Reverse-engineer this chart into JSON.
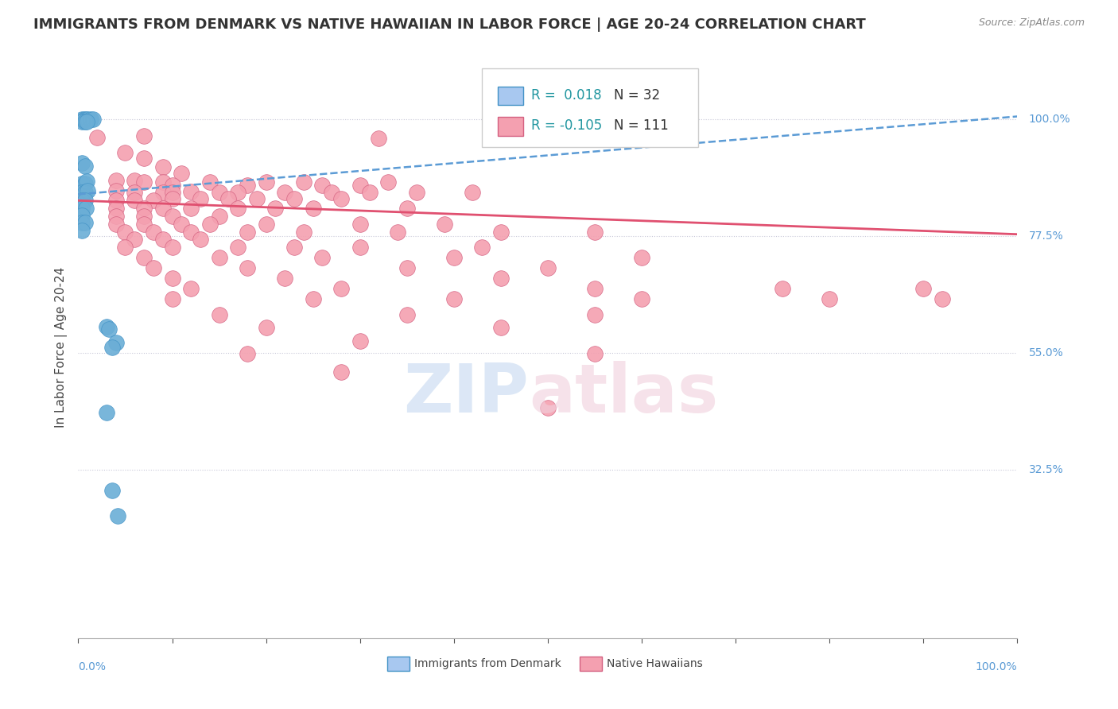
{
  "title": "IMMIGRANTS FROM DENMARK VS NATIVE HAWAIIAN IN LABOR FORCE | AGE 20-24 CORRELATION CHART",
  "source": "Source: ZipAtlas.com",
  "ylabel": "In Labor Force | Age 20-24",
  "xlim": [
    0.0,
    1.0
  ],
  "ylim": [
    0.0,
    1.12
  ],
  "x_tick_labels": [
    "0.0%",
    "100.0%"
  ],
  "y_tick_labels": [
    "32.5%",
    "55.0%",
    "77.5%",
    "100.0%"
  ],
  "y_tick_positions": [
    0.325,
    0.55,
    0.775,
    1.0
  ],
  "legend_denmark_r": "R =  0.018",
  "legend_denmark_n": "N = 32",
  "legend_hawaiian_r": "R = -0.105",
  "legend_hawaiian_n": "N = 111",
  "legend_denmark_color": "#a8c8f0",
  "legend_hawaiian_color": "#f4a0b0",
  "r_value_color": "#2196a0",
  "denmark_points": [
    [
      0.004,
      1.0
    ],
    [
      0.006,
      1.0
    ],
    [
      0.008,
      1.0
    ],
    [
      0.01,
      1.0
    ],
    [
      0.013,
      1.0
    ],
    [
      0.016,
      1.0
    ],
    [
      0.004,
      0.995
    ],
    [
      0.007,
      0.995
    ],
    [
      0.009,
      0.995
    ],
    [
      0.004,
      0.915
    ],
    [
      0.007,
      0.91
    ],
    [
      0.004,
      0.875
    ],
    [
      0.007,
      0.875
    ],
    [
      0.009,
      0.88
    ],
    [
      0.004,
      0.858
    ],
    [
      0.007,
      0.858
    ],
    [
      0.01,
      0.862
    ],
    [
      0.004,
      0.843
    ],
    [
      0.007,
      0.843
    ],
    [
      0.004,
      0.828
    ],
    [
      0.008,
      0.828
    ],
    [
      0.004,
      0.815
    ],
    [
      0.004,
      0.8
    ],
    [
      0.007,
      0.8
    ],
    [
      0.004,
      0.785
    ],
    [
      0.03,
      0.6
    ],
    [
      0.033,
      0.595
    ],
    [
      0.04,
      0.57
    ],
    [
      0.036,
      0.56
    ],
    [
      0.03,
      0.435
    ],
    [
      0.036,
      0.285
    ],
    [
      0.042,
      0.235
    ]
  ],
  "hawaiian_points": [
    [
      0.02,
      0.965
    ],
    [
      0.07,
      0.967
    ],
    [
      0.32,
      0.963
    ],
    [
      0.56,
      0.963
    ],
    [
      0.65,
      0.963
    ],
    [
      0.05,
      0.935
    ],
    [
      0.07,
      0.925
    ],
    [
      0.09,
      0.908
    ],
    [
      0.11,
      0.895
    ],
    [
      0.04,
      0.882
    ],
    [
      0.06,
      0.882
    ],
    [
      0.07,
      0.878
    ],
    [
      0.09,
      0.878
    ],
    [
      0.1,
      0.872
    ],
    [
      0.14,
      0.878
    ],
    [
      0.18,
      0.872
    ],
    [
      0.2,
      0.878
    ],
    [
      0.24,
      0.878
    ],
    [
      0.26,
      0.872
    ],
    [
      0.3,
      0.872
    ],
    [
      0.33,
      0.878
    ],
    [
      0.04,
      0.862
    ],
    [
      0.06,
      0.858
    ],
    [
      0.09,
      0.858
    ],
    [
      0.1,
      0.859
    ],
    [
      0.12,
      0.86
    ],
    [
      0.15,
      0.858
    ],
    [
      0.17,
      0.858
    ],
    [
      0.22,
      0.858
    ],
    [
      0.27,
      0.858
    ],
    [
      0.31,
      0.858
    ],
    [
      0.36,
      0.858
    ],
    [
      0.42,
      0.858
    ],
    [
      0.04,
      0.843
    ],
    [
      0.06,
      0.843
    ],
    [
      0.08,
      0.843
    ],
    [
      0.1,
      0.846
    ],
    [
      0.13,
      0.846
    ],
    [
      0.16,
      0.846
    ],
    [
      0.19,
      0.846
    ],
    [
      0.23,
      0.846
    ],
    [
      0.28,
      0.846
    ],
    [
      0.04,
      0.828
    ],
    [
      0.07,
      0.828
    ],
    [
      0.09,
      0.828
    ],
    [
      0.12,
      0.828
    ],
    [
      0.17,
      0.828
    ],
    [
      0.21,
      0.828
    ],
    [
      0.25,
      0.828
    ],
    [
      0.35,
      0.828
    ],
    [
      0.04,
      0.813
    ],
    [
      0.07,
      0.813
    ],
    [
      0.1,
      0.813
    ],
    [
      0.15,
      0.813
    ],
    [
      0.04,
      0.798
    ],
    [
      0.07,
      0.798
    ],
    [
      0.11,
      0.798
    ],
    [
      0.14,
      0.798
    ],
    [
      0.2,
      0.798
    ],
    [
      0.3,
      0.798
    ],
    [
      0.39,
      0.798
    ],
    [
      0.05,
      0.782
    ],
    [
      0.08,
      0.782
    ],
    [
      0.12,
      0.782
    ],
    [
      0.18,
      0.782
    ],
    [
      0.24,
      0.782
    ],
    [
      0.34,
      0.782
    ],
    [
      0.45,
      0.782
    ],
    [
      0.55,
      0.782
    ],
    [
      0.06,
      0.768
    ],
    [
      0.09,
      0.768
    ],
    [
      0.13,
      0.768
    ],
    [
      0.05,
      0.753
    ],
    [
      0.1,
      0.753
    ],
    [
      0.17,
      0.753
    ],
    [
      0.23,
      0.753
    ],
    [
      0.3,
      0.753
    ],
    [
      0.43,
      0.753
    ],
    [
      0.07,
      0.733
    ],
    [
      0.15,
      0.733
    ],
    [
      0.26,
      0.733
    ],
    [
      0.4,
      0.733
    ],
    [
      0.6,
      0.733
    ],
    [
      0.08,
      0.713
    ],
    [
      0.18,
      0.713
    ],
    [
      0.35,
      0.713
    ],
    [
      0.5,
      0.713
    ],
    [
      0.1,
      0.693
    ],
    [
      0.22,
      0.693
    ],
    [
      0.45,
      0.693
    ],
    [
      0.12,
      0.673
    ],
    [
      0.28,
      0.673
    ],
    [
      0.55,
      0.673
    ],
    [
      0.75,
      0.673
    ],
    [
      0.1,
      0.653
    ],
    [
      0.25,
      0.653
    ],
    [
      0.4,
      0.653
    ],
    [
      0.6,
      0.653
    ],
    [
      0.8,
      0.653
    ],
    [
      0.15,
      0.623
    ],
    [
      0.35,
      0.623
    ],
    [
      0.55,
      0.623
    ],
    [
      0.2,
      0.598
    ],
    [
      0.45,
      0.598
    ],
    [
      0.3,
      0.573
    ],
    [
      0.18,
      0.548
    ],
    [
      0.55,
      0.548
    ],
    [
      0.28,
      0.513
    ],
    [
      0.5,
      0.443
    ],
    [
      0.9,
      0.673
    ],
    [
      0.92,
      0.653
    ]
  ],
  "denmark_line": {
    "x0": 0.0,
    "y0": 0.855,
    "x1": 1.0,
    "y1": 1.005
  },
  "hawaiian_line": {
    "x0": 0.0,
    "y0": 0.843,
    "x1": 1.0,
    "y1": 0.778
  },
  "denmark_dot_color": "#6baed6",
  "denmark_dot_edge": "#4292c6",
  "hawaiian_dot_color": "#f4a0b0",
  "hawaiian_dot_edge": "#d46080",
  "denmark_line_color": "#5b9bd5",
  "hawaiian_line_color": "#e05070",
  "grid_color": "#c8c8d8",
  "background_color": "#ffffff",
  "title_fontsize": 13,
  "axis_label_fontsize": 11,
  "tick_fontsize": 10,
  "legend_fontsize": 12,
  "right_label_color": "#5b9bd5"
}
